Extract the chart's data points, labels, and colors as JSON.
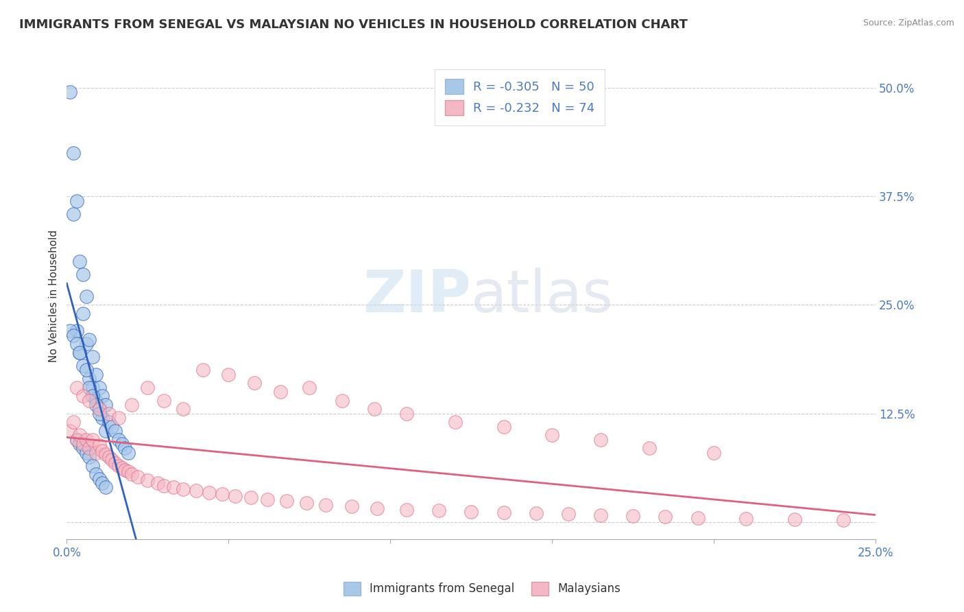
{
  "title": "IMMIGRANTS FROM SENEGAL VS MALAYSIAN NO VEHICLES IN HOUSEHOLD CORRELATION CHART",
  "source": "Source: ZipAtlas.com",
  "ylabel": "No Vehicles in Household",
  "ylabel_ticks": [
    "50.0%",
    "37.5%",
    "25.0%",
    "12.5%",
    ""
  ],
  "ylabel_tick_vals": [
    0.5,
    0.375,
    0.25,
    0.125,
    0.0
  ],
  "xlim": [
    0.0,
    0.25
  ],
  "ylim": [
    -0.02,
    0.54
  ],
  "legend_r1": "R = -0.305",
  "legend_n1": "N = 50",
  "legend_r2": "R = -0.232",
  "legend_n2": "N = 74",
  "legend_label1": "Immigrants from Senegal",
  "legend_label2": "Malaysians",
  "color_blue": "#a8c8e8",
  "color_pink": "#f4b8c4",
  "color_line_blue": "#3060c0",
  "color_line_pink": "#e06080",
  "watermark_zip": "ZIP",
  "watermark_atlas": "atlas",
  "senegal_x": [
    0.001,
    0.002,
    0.002,
    0.003,
    0.003,
    0.004,
    0.004,
    0.005,
    0.005,
    0.006,
    0.006,
    0.007,
    0.007,
    0.008,
    0.008,
    0.009,
    0.009,
    0.01,
    0.01,
    0.011,
    0.011,
    0.012,
    0.012,
    0.013,
    0.014,
    0.015,
    0.016,
    0.017,
    0.018,
    0.019,
    0.001,
    0.002,
    0.003,
    0.004,
    0.005,
    0.006,
    0.007,
    0.008,
    0.009,
    0.01,
    0.003,
    0.004,
    0.005,
    0.006,
    0.007,
    0.008,
    0.009,
    0.01,
    0.011,
    0.012
  ],
  "senegal_y": [
    0.495,
    0.425,
    0.355,
    0.37,
    0.22,
    0.3,
    0.195,
    0.285,
    0.24,
    0.26,
    0.205,
    0.21,
    0.165,
    0.19,
    0.155,
    0.17,
    0.14,
    0.155,
    0.13,
    0.145,
    0.12,
    0.135,
    0.105,
    0.115,
    0.11,
    0.105,
    0.095,
    0.09,
    0.085,
    0.08,
    0.22,
    0.215,
    0.205,
    0.195,
    0.18,
    0.175,
    0.155,
    0.145,
    0.135,
    0.125,
    0.095,
    0.09,
    0.085,
    0.08,
    0.075,
    0.065,
    0.055,
    0.05,
    0.045,
    0.04
  ],
  "malaysian_x": [
    0.001,
    0.002,
    0.003,
    0.004,
    0.005,
    0.006,
    0.007,
    0.008,
    0.009,
    0.01,
    0.011,
    0.012,
    0.013,
    0.014,
    0.015,
    0.016,
    0.017,
    0.018,
    0.019,
    0.02,
    0.022,
    0.025,
    0.028,
    0.03,
    0.033,
    0.036,
    0.04,
    0.044,
    0.048,
    0.052,
    0.057,
    0.062,
    0.068,
    0.074,
    0.08,
    0.088,
    0.096,
    0.105,
    0.115,
    0.125,
    0.135,
    0.145,
    0.155,
    0.165,
    0.175,
    0.185,
    0.195,
    0.21,
    0.225,
    0.24,
    0.003,
    0.005,
    0.007,
    0.01,
    0.013,
    0.016,
    0.02,
    0.025,
    0.03,
    0.036,
    0.042,
    0.05,
    0.058,
    0.066,
    0.075,
    0.085,
    0.095,
    0.105,
    0.12,
    0.135,
    0.15,
    0.165,
    0.18,
    0.2
  ],
  "malaysian_y": [
    0.105,
    0.115,
    0.095,
    0.1,
    0.09,
    0.095,
    0.085,
    0.095,
    0.08,
    0.088,
    0.082,
    0.078,
    0.075,
    0.072,
    0.068,
    0.065,
    0.062,
    0.06,
    0.058,
    0.055,
    0.052,
    0.048,
    0.045,
    0.042,
    0.04,
    0.038,
    0.036,
    0.034,
    0.032,
    0.03,
    0.028,
    0.026,
    0.024,
    0.022,
    0.02,
    0.018,
    0.016,
    0.014,
    0.013,
    0.012,
    0.011,
    0.01,
    0.009,
    0.008,
    0.007,
    0.006,
    0.005,
    0.004,
    0.003,
    0.002,
    0.155,
    0.145,
    0.14,
    0.13,
    0.125,
    0.12,
    0.135,
    0.155,
    0.14,
    0.13,
    0.175,
    0.17,
    0.16,
    0.15,
    0.155,
    0.14,
    0.13,
    0.125,
    0.115,
    0.11,
    0.1,
    0.095,
    0.085,
    0.08
  ]
}
